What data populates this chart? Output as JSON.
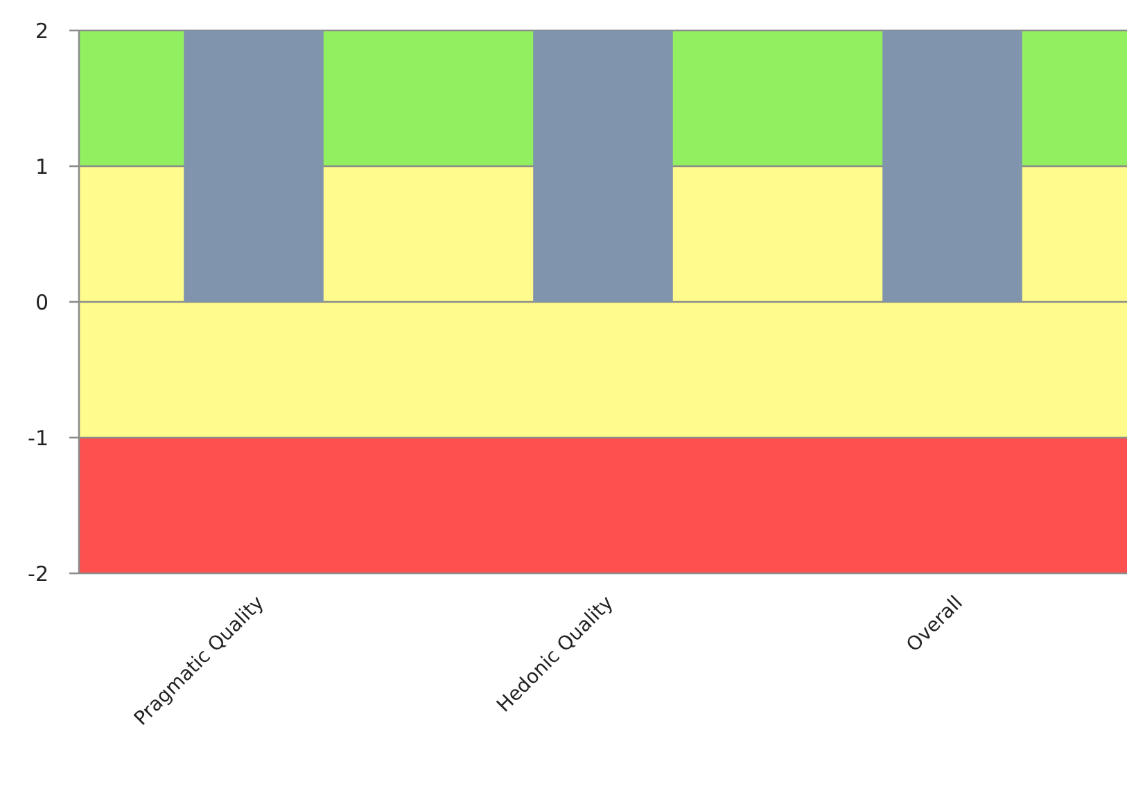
{
  "chart_data": {
    "type": "bar",
    "categories": [
      "Pragmatic Quality",
      "Hedonic Quality",
      "Overall"
    ],
    "values": [
      2,
      2,
      2
    ],
    "color": "#8094ad",
    "ylim": [
      -2,
      2
    ],
    "yticks": [
      -2,
      -1,
      0,
      1,
      2
    ],
    "grid": "y",
    "bands": [
      {
        "axis": "y",
        "from": 1,
        "to": 2,
        "color": "#92f060"
      },
      {
        "axis": "y",
        "from": -1,
        "to": 1,
        "color": "#fffb8c"
      },
      {
        "axis": "y",
        "from": -2,
        "to": -1,
        "color": "#ff5050"
      }
    ]
  }
}
